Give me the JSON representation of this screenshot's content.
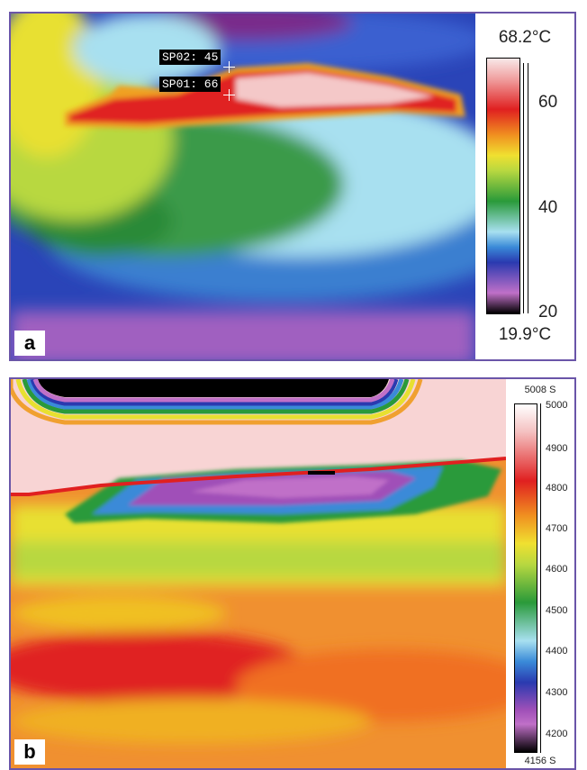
{
  "panel_a": {
    "label": "a",
    "scale_max": "68.2°C",
    "scale_min": "19.9°C",
    "ticks": [
      "60",
      "40",
      "20"
    ],
    "spots": [
      "SP02: 45",
      "SP01: 66"
    ]
  },
  "panel_b": {
    "label": "b",
    "scale_max": "5008 S",
    "scale_min": "4156 S",
    "ticks": [
      "5000",
      "4900",
      "4800",
      "4700",
      "4600",
      "4500",
      "4400",
      "4300",
      "4200"
    ]
  },
  "colors": {
    "frame": "#6a55a8",
    "palette": [
      "#000000",
      "#7a2a8a",
      "#c070c8",
      "#2a3ab0",
      "#3a8ad8",
      "#a8e0f0",
      "#2a9a3a",
      "#b8d840",
      "#f0e030",
      "#f09020",
      "#e02020",
      "#f8d8d8"
    ]
  }
}
